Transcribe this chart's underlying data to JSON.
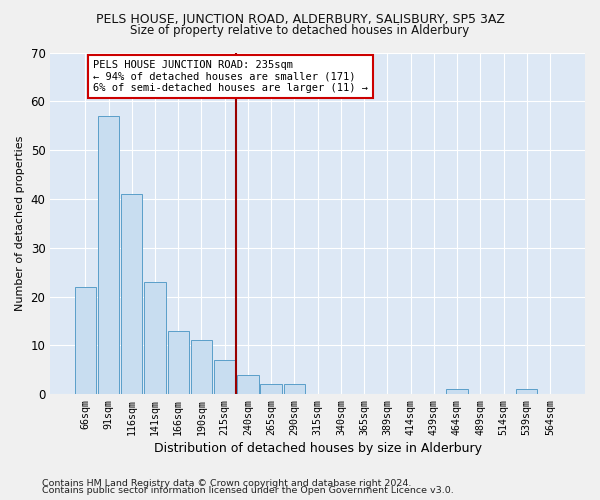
{
  "title": "PELS HOUSE, JUNCTION ROAD, ALDERBURY, SALISBURY, SP5 3AZ",
  "subtitle": "Size of property relative to detached houses in Alderbury",
  "xlabel": "Distribution of detached houses by size in Alderbury",
  "ylabel": "Number of detached properties",
  "categories": [
    "66sqm",
    "91sqm",
    "116sqm",
    "141sqm",
    "166sqm",
    "190sqm",
    "215sqm",
    "240sqm",
    "265sqm",
    "290sqm",
    "315sqm",
    "340sqm",
    "365sqm",
    "389sqm",
    "414sqm",
    "439sqm",
    "464sqm",
    "489sqm",
    "514sqm",
    "539sqm",
    "564sqm"
  ],
  "values": [
    22,
    57,
    41,
    23,
    13,
    11,
    7,
    4,
    2,
    2,
    0,
    0,
    0,
    0,
    0,
    0,
    1,
    0,
    0,
    1,
    0
  ],
  "bar_color": "#c8ddf0",
  "bar_edge_color": "#5a9ec9",
  "vline_color": "#990000",
  "annotation_text": "PELS HOUSE JUNCTION ROAD: 235sqm\n← 94% of detached houses are smaller (171)\n6% of semi-detached houses are larger (11) →",
  "annotation_box_color": "#ffffff",
  "annotation_box_edge": "#cc0000",
  "ylim": [
    0,
    70
  ],
  "yticks": [
    0,
    10,
    20,
    30,
    40,
    50,
    60,
    70
  ],
  "bg_color": "#dde8f5",
  "grid_color": "#ffffff",
  "fig_bg_color": "#f0f0f0",
  "footer1": "Contains HM Land Registry data © Crown copyright and database right 2024.",
  "footer2": "Contains public sector information licensed under the Open Government Licence v3.0."
}
